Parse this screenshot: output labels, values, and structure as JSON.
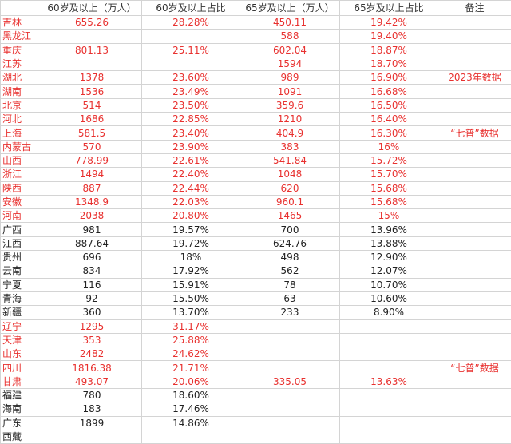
{
  "table": {
    "header": [
      "60岁及以上（万人）",
      "60岁及以上占比",
      "65岁及以上（万人）",
      "65岁及以上占比",
      "备注"
    ],
    "rows": [
      {
        "cells": [
          "吉林",
          "655.26",
          "28.28%",
          "450.11",
          "19.42%",
          null
        ],
        "color": "#e8312f"
      },
      {
        "cells": [
          "黑龙江",
          null,
          null,
          "588",
          "19.40%",
          null
        ],
        "color": "#e8312f"
      },
      {
        "cells": [
          "重庆",
          "801.13",
          "25.11%",
          "602.04",
          "18.87%",
          null
        ],
        "color": "#e8312f"
      },
      {
        "cells": [
          "江苏",
          null,
          null,
          "1594",
          "18.70%",
          null
        ],
        "color": "#e8312f"
      },
      {
        "cells": [
          "湖北",
          "1378",
          "23.60%",
          "989",
          "16.90%",
          "2023年数据"
        ],
        "color": "#e8312f"
      },
      {
        "cells": [
          "湖南",
          "1536",
          "23.49%",
          "1091",
          "16.68%",
          null
        ],
        "color": "#e8312f"
      },
      {
        "cells": [
          "北京",
          "514",
          "23.50%",
          "359.6",
          "16.50%",
          null
        ],
        "color": "#e8312f"
      },
      {
        "cells": [
          "河北",
          "1686",
          "22.85%",
          "1210",
          "16.40%",
          null
        ],
        "color": "#e8312f"
      },
      {
        "cells": [
          "上海",
          "581.5",
          "23.40%",
          "404.9",
          "16.30%",
          "“七普”数据"
        ],
        "color": "#e8312f"
      },
      {
        "cells": [
          "内蒙古",
          "570",
          "23.90%",
          "383",
          "16%",
          null
        ],
        "color": "#e8312f"
      },
      {
        "cells": [
          "山西",
          "778.99",
          "22.61%",
          "541.84",
          "15.72%",
          null
        ],
        "color": "#e8312f"
      },
      {
        "cells": [
          "浙江",
          "1494",
          "22.40%",
          "1048",
          "15.70%",
          null
        ],
        "color": "#e8312f"
      },
      {
        "cells": [
          "陕西",
          "887",
          "22.44%",
          "620",
          "15.68%",
          null
        ],
        "color": "#e8312f"
      },
      {
        "cells": [
          "安徽",
          "1348.9",
          "22.03%",
          "960.1",
          "15.68%",
          null
        ],
        "color": "#e8312f"
      },
      {
        "cells": [
          "河南",
          "2038",
          "20.80%",
          "1465",
          "15%",
          null
        ],
        "color": "#e8312f"
      },
      {
        "cells": [
          "广西",
          "981",
          "19.57%",
          "700",
          "13.96%",
          null
        ],
        "color": "#222222"
      },
      {
        "cells": [
          "江西",
          "887.64",
          "19.72%",
          "624.76",
          "13.88%",
          null
        ],
        "color": "#222222"
      },
      {
        "cells": [
          "贵州",
          "696",
          "18%",
          "498",
          "12.90%",
          null
        ],
        "color": "#222222"
      },
      {
        "cells": [
          "云南",
          "834",
          "17.92%",
          "562",
          "12.07%",
          null
        ],
        "color": "#222222"
      },
      {
        "cells": [
          "宁夏",
          "116",
          "15.91%",
          "78",
          "10.70%",
          null
        ],
        "color": "#222222"
      },
      {
        "cells": [
          "青海",
          "92",
          "15.50%",
          "63",
          "10.60%",
          null
        ],
        "color": "#222222"
      },
      {
        "cells": [
          "新疆",
          "360",
          "13.70%",
          "233",
          "8.90%",
          null
        ],
        "color": "#222222"
      },
      {
        "cells": [
          "辽宁",
          "1295",
          "31.17%",
          null,
          null,
          null
        ],
        "color": "#e8312f"
      },
      {
        "cells": [
          "天津",
          "353",
          "25.88%",
          null,
          null,
          null
        ],
        "color": "#e8312f"
      },
      {
        "cells": [
          "山东",
          "2482",
          "24.62%",
          null,
          null,
          null
        ],
        "color": "#e8312f"
      },
      {
        "cells": [
          "四川",
          "1816.38",
          "21.71%",
          null,
          null,
          "“七普”数据"
        ],
        "color": "#e8312f"
      },
      {
        "cells": [
          "甘肃",
          "493.07",
          "20.06%",
          "335.05",
          "13.63%",
          null
        ],
        "color": "#e8312f"
      },
      {
        "cells": [
          "福建",
          "780",
          "18.60%",
          null,
          null,
          null
        ],
        "color": "#222222"
      },
      {
        "cells": [
          "海南",
          "183",
          "17.46%",
          null,
          null,
          null
        ],
        "color": "#222222"
      },
      {
        "cells": [
          "广东",
          "1899",
          "14.86%",
          null,
          null,
          null
        ],
        "color": "#222222"
      },
      {
        "cells": [
          "西藏",
          null,
          null,
          null,
          null,
          null
        ],
        "color": "#222222"
      }
    ]
  }
}
